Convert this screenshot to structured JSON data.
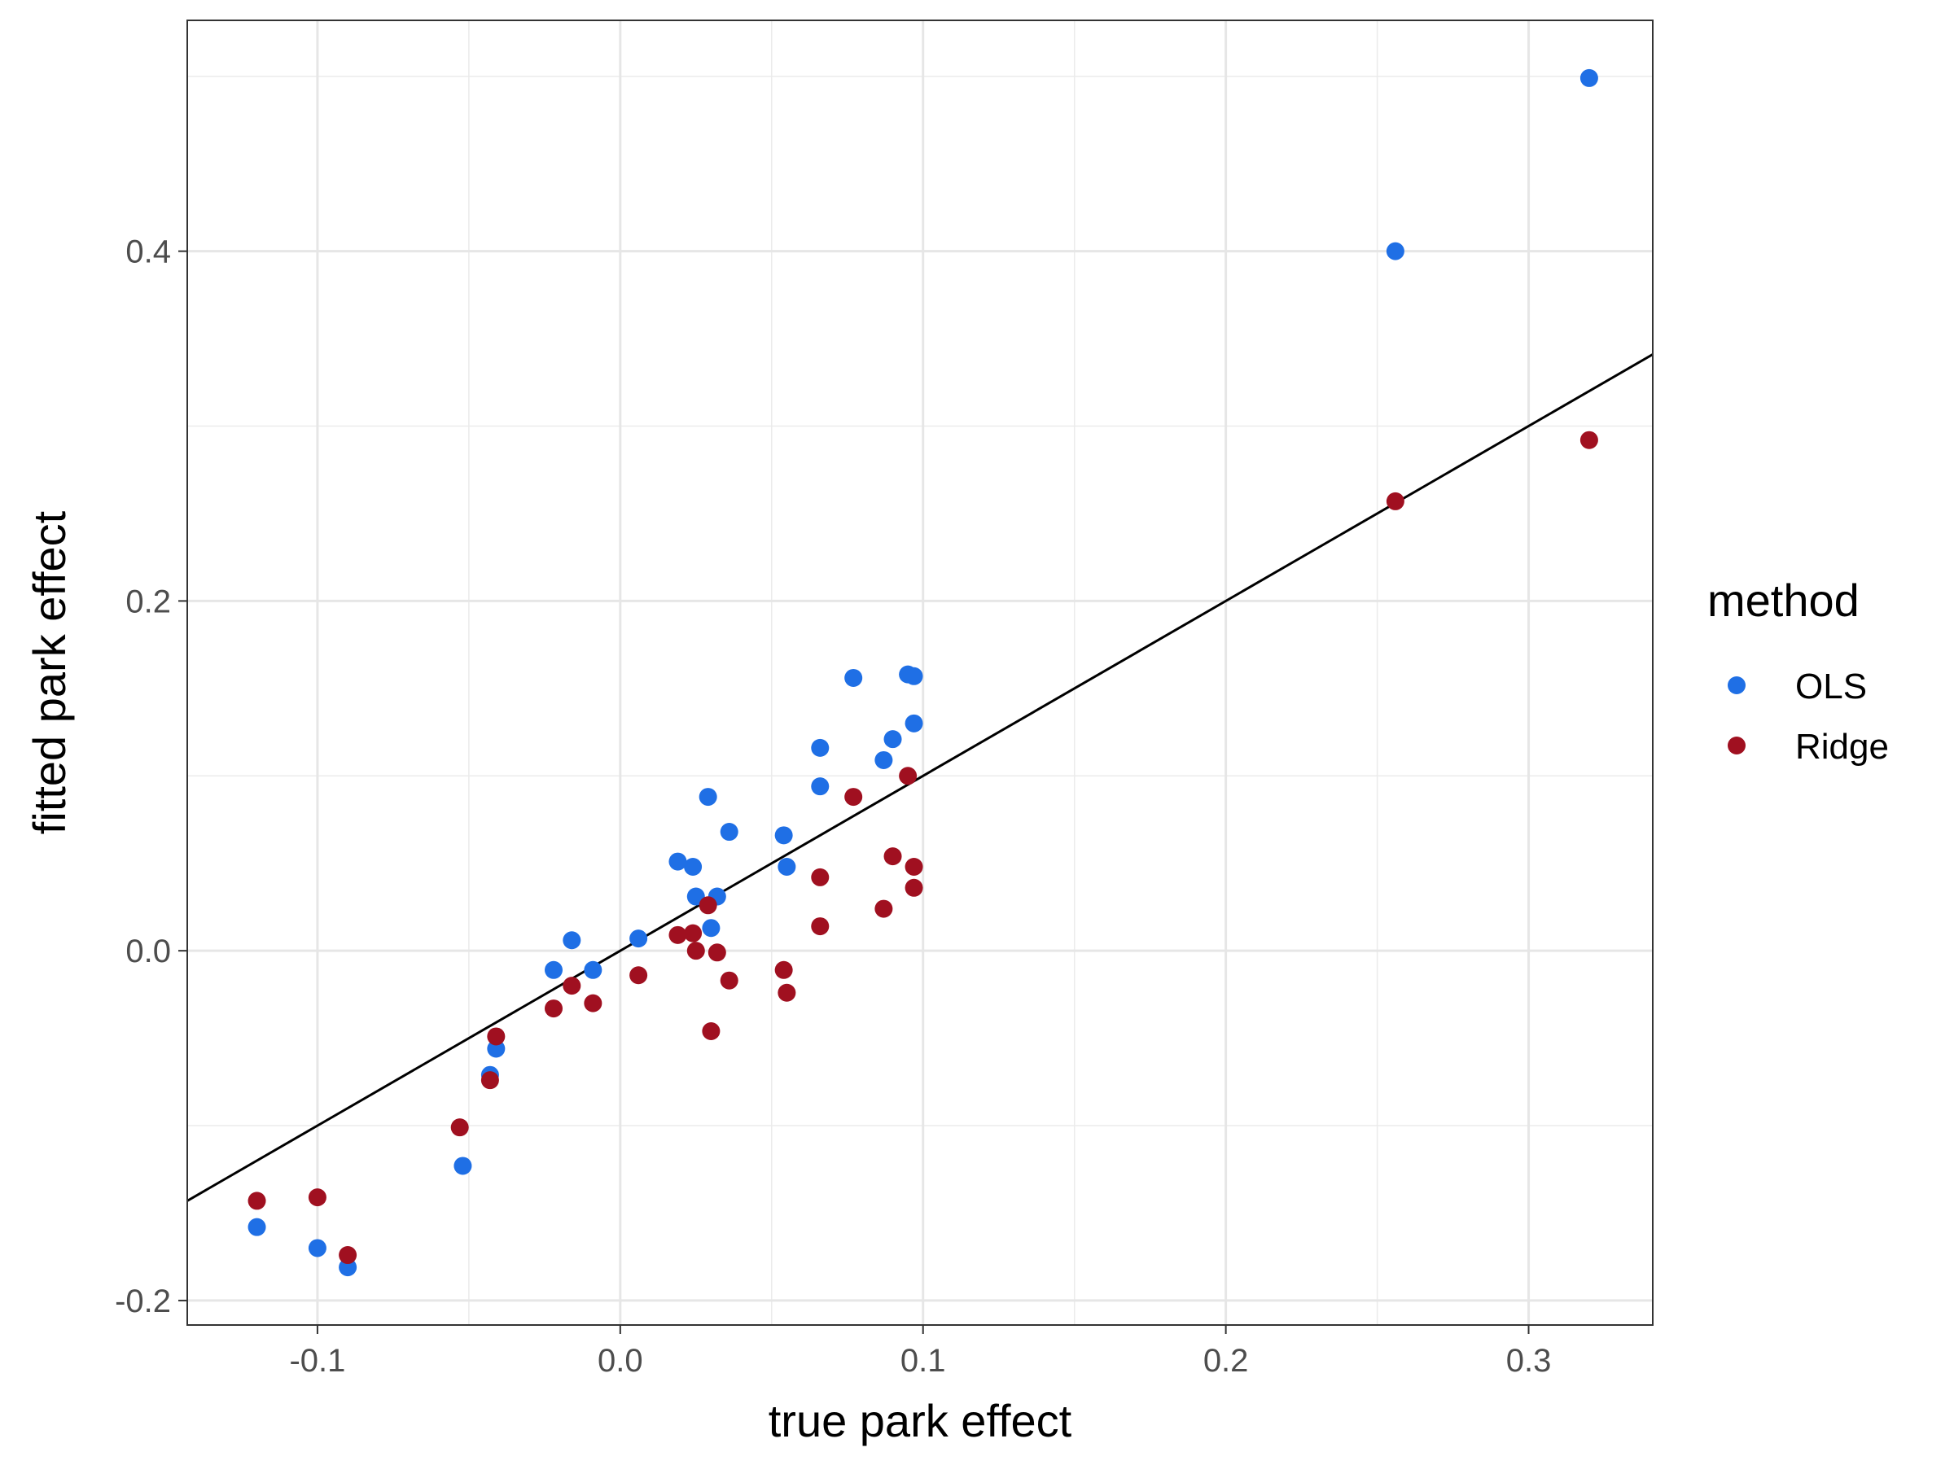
{
  "chart_data": {
    "type": "scatter",
    "xlabel": "true park effect",
    "ylabel": "fitted park effect",
    "xlim": [
      -0.143,
      0.341
    ],
    "ylim": [
      -0.214,
      0.532
    ],
    "x_ticks": [
      -0.1,
      0.0,
      0.1,
      0.2,
      0.3
    ],
    "x_tick_labels": [
      "-0.1",
      "0.0",
      "0.1",
      "0.2",
      "0.3"
    ],
    "y_ticks": [
      -0.2,
      0.0,
      0.2,
      0.4
    ],
    "y_tick_labels": [
      "-0.2",
      "0.0",
      "0.2",
      "0.4"
    ],
    "grid": true,
    "reference_line": {
      "slope": 1,
      "intercept": 0
    },
    "legend": {
      "title": "method",
      "position": "right"
    },
    "series": [
      {
        "name": "OLS",
        "color": "#1f6fe5",
        "points": [
          [
            -0.12,
            -0.158
          ],
          [
            -0.1,
            -0.17
          ],
          [
            -0.09,
            -0.181
          ],
          [
            -0.052,
            -0.123
          ],
          [
            -0.043,
            -0.071
          ],
          [
            -0.041,
            -0.056
          ],
          [
            -0.022,
            -0.011
          ],
          [
            -0.016,
            0.006
          ],
          [
            -0.009,
            -0.011
          ],
          [
            0.006,
            0.007
          ],
          [
            0.019,
            0.051
          ],
          [
            0.024,
            0.048
          ],
          [
            0.025,
            0.031
          ],
          [
            0.029,
            0.088
          ],
          [
            0.03,
            0.013
          ],
          [
            0.032,
            0.031
          ],
          [
            0.036,
            0.068
          ],
          [
            0.054,
            0.066
          ],
          [
            0.055,
            0.048
          ],
          [
            0.066,
            0.116
          ],
          [
            0.066,
            0.094
          ],
          [
            0.077,
            0.156
          ],
          [
            0.087,
            0.109
          ],
          [
            0.09,
            0.121
          ],
          [
            0.095,
            0.158
          ],
          [
            0.097,
            0.157
          ],
          [
            0.097,
            0.13
          ],
          [
            0.256,
            0.4
          ],
          [
            0.32,
            0.499
          ]
        ]
      },
      {
        "name": "Ridge",
        "color": "#a01020",
        "points": [
          [
            -0.12,
            -0.143
          ],
          [
            -0.1,
            -0.141
          ],
          [
            -0.09,
            -0.174
          ],
          [
            -0.053,
            -0.101
          ],
          [
            -0.043,
            -0.074
          ],
          [
            -0.041,
            -0.049
          ],
          [
            -0.022,
            -0.033
          ],
          [
            -0.016,
            -0.02
          ],
          [
            -0.009,
            -0.03
          ],
          [
            0.006,
            -0.014
          ],
          [
            0.019,
            0.009
          ],
          [
            0.024,
            0.01
          ],
          [
            0.025,
            0.0
          ],
          [
            0.029,
            0.026
          ],
          [
            0.03,
            -0.046
          ],
          [
            0.032,
            -0.001
          ],
          [
            0.036,
            -0.017
          ],
          [
            0.054,
            -0.011
          ],
          [
            0.055,
            -0.024
          ],
          [
            0.066,
            0.042
          ],
          [
            0.066,
            0.014
          ],
          [
            0.077,
            0.088
          ],
          [
            0.087,
            0.024
          ],
          [
            0.09,
            0.054
          ],
          [
            0.095,
            0.1
          ],
          [
            0.097,
            0.048
          ],
          [
            0.097,
            0.036
          ],
          [
            0.256,
            0.257
          ],
          [
            0.32,
            0.292
          ]
        ]
      }
    ]
  }
}
